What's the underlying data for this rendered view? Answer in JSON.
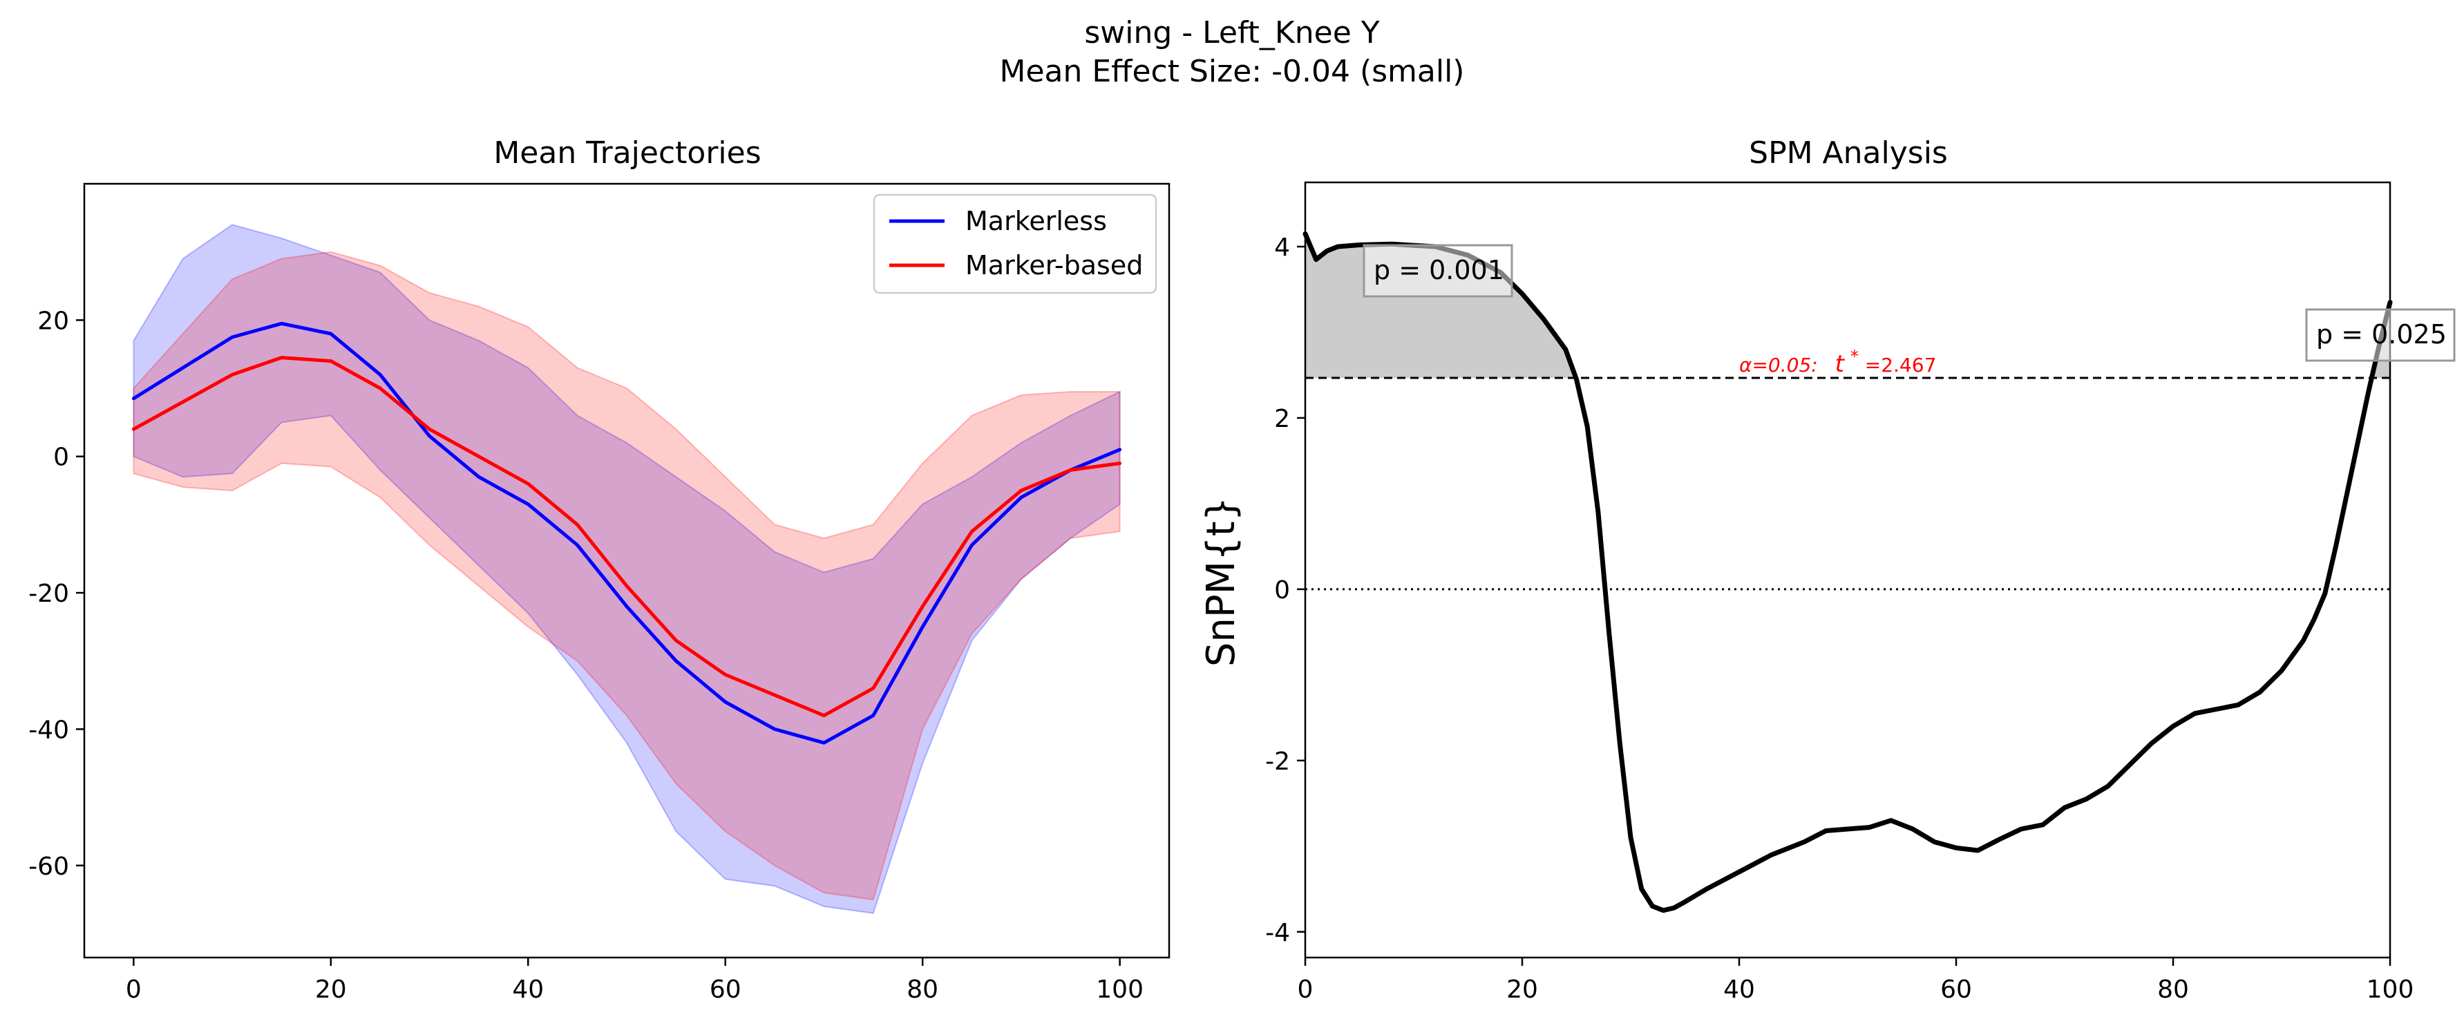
{
  "figure": {
    "title_line1": "swing - Left_Knee Y",
    "title_line2": "Mean Effect Size: -0.04 (small)"
  },
  "chart_data": [
    {
      "type": "line",
      "title": "Mean Trajectories",
      "xlim": [
        -5,
        105
      ],
      "ylim": [
        -73.5,
        40
      ],
      "xticks": [
        0,
        20,
        40,
        60,
        80,
        100
      ],
      "yticks": [
        20,
        0,
        -20,
        -40,
        -60
      ],
      "legend_position": "top-right",
      "x": [
        0,
        5,
        10,
        15,
        20,
        25,
        30,
        35,
        40,
        45,
        50,
        55,
        60,
        65,
        70,
        75,
        80,
        85,
        90,
        95,
        100
      ],
      "series": [
        {
          "name": "Markerless",
          "color": "#0000ff",
          "mean": [
            8.5,
            13,
            17.5,
            19.5,
            18,
            12,
            3,
            -3,
            -7,
            -13,
            -22,
            -30,
            -36,
            -40,
            -42,
            -38,
            -25,
            -13,
            -6,
            -2,
            1
          ],
          "upper": [
            17,
            29,
            34,
            32,
            29.5,
            27,
            20,
            17,
            13,
            6,
            2,
            -3,
            -8,
            -14,
            -17,
            -15,
            -7,
            -3,
            2,
            6,
            9.5
          ],
          "lower": [
            0,
            -3,
            -2.5,
            5,
            6,
            -2,
            -9,
            -16,
            -23,
            -32,
            -42,
            -55,
            -62,
            -63,
            -66,
            -67,
            -45,
            -27,
            -18,
            -12,
            -7
          ]
        },
        {
          "name": "Marker-based",
          "color": "#ff0000",
          "mean": [
            4,
            8,
            12,
            14.5,
            14,
            10,
            4,
            0,
            -4,
            -10,
            -19,
            -27,
            -32,
            -35,
            -38,
            -34,
            -22,
            -11,
            -5,
            -2,
            -1
          ],
          "upper": [
            10,
            18,
            26,
            29,
            30,
            28,
            24,
            22,
            19,
            13,
            10,
            4,
            -3,
            -10,
            -12,
            -10,
            -1,
            6,
            9,
            9.5,
            9.5
          ],
          "lower": [
            -2.5,
            -4.5,
            -5,
            -1,
            -1.5,
            -6,
            -13,
            -19,
            -25,
            -30,
            -38,
            -48,
            -55,
            -60,
            -64,
            -65,
            -40,
            -26,
            -18,
            -12,
            -11
          ]
        }
      ]
    },
    {
      "type": "line",
      "title": "SPM Analysis",
      "ylabel": "SnPM{t}",
      "xlim": [
        0,
        100
      ],
      "ylim": [
        -4.3,
        4.75
      ],
      "xticks": [
        0,
        20,
        40,
        60,
        80,
        100
      ],
      "yticks": [
        4,
        2,
        0,
        -2,
        -4
      ],
      "threshold": 2.467,
      "threshold_label_alpha": "α=0.05:",
      "threshold_label_t": "t",
      "threshold_label_star": "*",
      "threshold_label_value": "=2.467",
      "x": [
        0,
        1,
        2,
        3,
        5,
        8,
        12,
        15,
        18,
        20,
        22,
        24,
        25,
        26,
        27,
        28,
        29,
        30,
        31,
        32,
        33,
        34,
        35,
        37,
        40,
        43,
        46,
        48,
        50,
        52,
        54,
        56,
        58,
        60,
        62,
        64,
        66,
        68,
        70,
        72,
        74,
        76,
        78,
        80,
        82,
        84,
        86,
        88,
        90,
        92,
        93,
        94,
        95,
        96,
        97,
        98,
        99,
        100
      ],
      "y": [
        4.15,
        3.85,
        3.95,
        4.0,
        4.02,
        4.03,
        4.0,
        3.9,
        3.7,
        3.45,
        3.15,
        2.8,
        2.45,
        1.9,
        0.9,
        -0.5,
        -1.8,
        -2.9,
        -3.5,
        -3.7,
        -3.75,
        -3.72,
        -3.65,
        -3.5,
        -3.3,
        -3.1,
        -2.95,
        -2.82,
        -2.8,
        -2.78,
        -2.7,
        -2.8,
        -2.95,
        -3.02,
        -3.05,
        -2.92,
        -2.8,
        -2.75,
        -2.55,
        -2.45,
        -2.3,
        -2.05,
        -1.8,
        -1.6,
        -1.45,
        -1.4,
        -1.35,
        -1.2,
        -0.95,
        -0.6,
        -0.35,
        -0.05,
        0.5,
        1.1,
        1.7,
        2.3,
        2.85,
        3.35
      ],
      "clusters": [
        {
          "label": "p = 0.001"
        },
        {
          "label": "p = 0.025"
        }
      ]
    }
  ]
}
